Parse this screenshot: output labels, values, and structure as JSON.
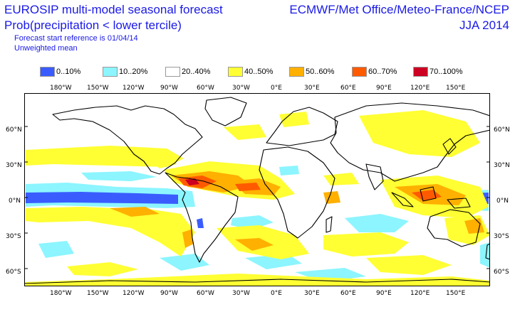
{
  "header": {
    "title_line1": "EUROSIP multi-model seasonal forecast",
    "title_line2": "Prob(precipitation < lower tercile)",
    "subtitle_line1": "Forecast start reference is 01/04/14",
    "subtitle_line2": "Unweighted mean",
    "producers": "ECMWF/Met Office/Meteo-France/NCEP",
    "season": "JJA 2014"
  },
  "legend": [
    {
      "label": "0..10%",
      "color": "#3a5cff"
    },
    {
      "label": "10..20%",
      "color": "#8cf5ff"
    },
    {
      "label": "20..40%",
      "color": "#ffffff"
    },
    {
      "label": "40..50%",
      "color": "#ffff33"
    },
    {
      "label": "50..60%",
      "color": "#ffb000"
    },
    {
      "label": "60..70%",
      "color": "#ff5a00"
    },
    {
      "label": "70..100%",
      "color": "#cc0022"
    }
  ],
  "map": {
    "lon_labels": [
      "180°W",
      "150°W",
      "120°W",
      "90°W",
      "60°W",
      "30°W",
      "0°E",
      "30°E",
      "60°E",
      "90°E",
      "120°E",
      "150°E"
    ],
    "lat_labels": [
      "60°N",
      "30°N",
      "0°N",
      "30°S",
      "60°S"
    ]
  }
}
